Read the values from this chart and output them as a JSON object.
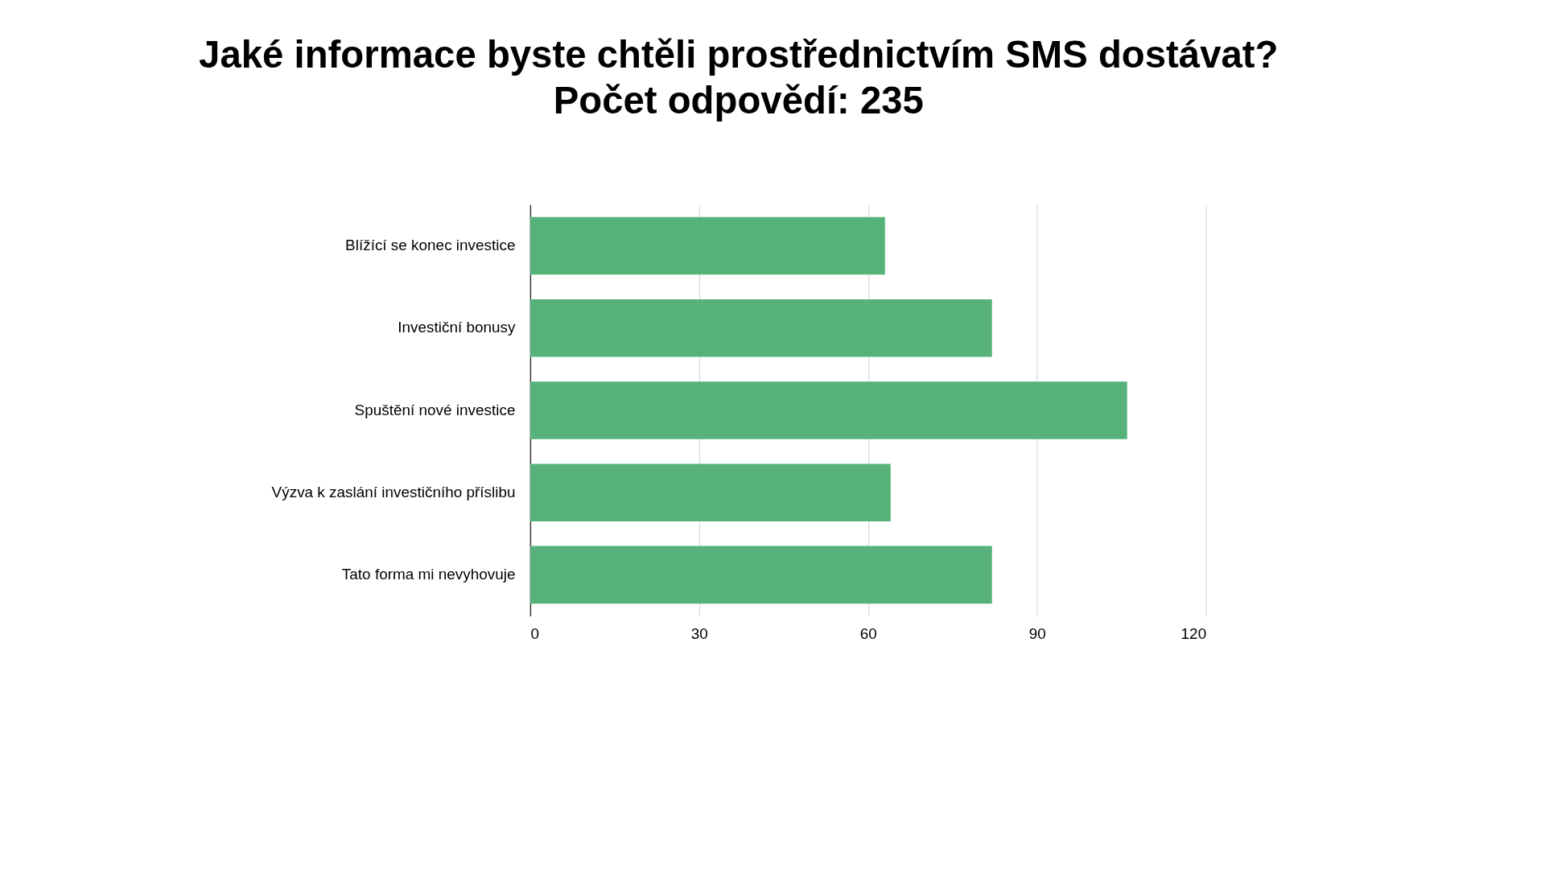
{
  "chart_data": {
    "type": "bar",
    "orientation": "horizontal",
    "title": [
      "Jaké informace byste chtěli prostřednictvím SMS dostávat?",
      "Počet odpovědí: 235"
    ],
    "categories": [
      "Blížící se konec investice",
      "Investiční bonusy",
      "Spuštění nové investice",
      "Výzva k zaslání investičního příslibu",
      "Tato forma mi nevyhovuje"
    ],
    "values": [
      63,
      82,
      106,
      64,
      82
    ],
    "color": "#56b27a",
    "xlim": [
      0,
      120
    ],
    "xticks": [
      0,
      30,
      60,
      90,
      120
    ],
    "grid": "x"
  }
}
